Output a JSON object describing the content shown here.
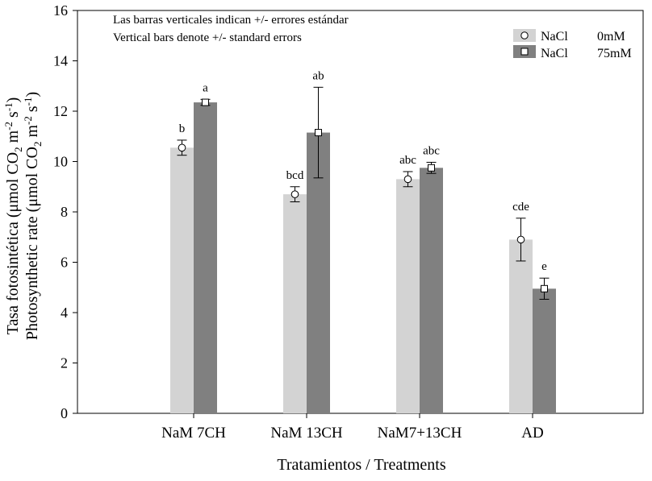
{
  "chart_data": {
    "type": "bar",
    "note_lines": [
      "Las barras verticales indican +/- errores estándar",
      "Vertical bars denote +/- standard errors"
    ],
    "ylabel": {
      "line1": {
        "main": "Tasa fotosintética (μmol CO",
        "sub1": "2",
        "mid": " m",
        "sup1": "-2",
        "sp": " s",
        "sup2": "-1",
        "end": ")"
      },
      "line2": {
        "main": "Photosynthetic rate (μmol CO",
        "sub1": "2",
        "mid": " m",
        "sup1": "-2",
        "sp": " s",
        "sup2": "-1",
        "end": ")"
      }
    },
    "xlabel": "Tratamientos / Treatments",
    "ylim": [
      0,
      16
    ],
    "yticks": [
      0,
      2,
      4,
      6,
      8,
      10,
      12,
      14,
      16
    ],
    "categories": [
      "NaM 7CH",
      "NaM 13CH",
      "NaM7+13CH",
      "AD"
    ],
    "series": [
      {
        "name": "NaCl 0mM",
        "legend_label": "NaCl",
        "legend_value": "0mM",
        "color": "#d3d3d3",
        "marker": "circle",
        "values": [
          10.55,
          8.7,
          9.3,
          6.9
        ],
        "errors": [
          0.3,
          0.3,
          0.3,
          0.85
        ],
        "labels": [
          "b",
          "bcd",
          "abc",
          "cde"
        ]
      },
      {
        "name": "NaCl 75mM",
        "legend_label": "NaCl",
        "legend_value": "75mM",
        "color": "#808080",
        "marker": "square",
        "values": [
          12.35,
          11.15,
          9.75,
          4.95
        ],
        "errors": [
          0.12,
          1.8,
          0.22,
          0.42
        ],
        "labels": [
          "a",
          "ab",
          "abc",
          "e"
        ]
      }
    ]
  }
}
